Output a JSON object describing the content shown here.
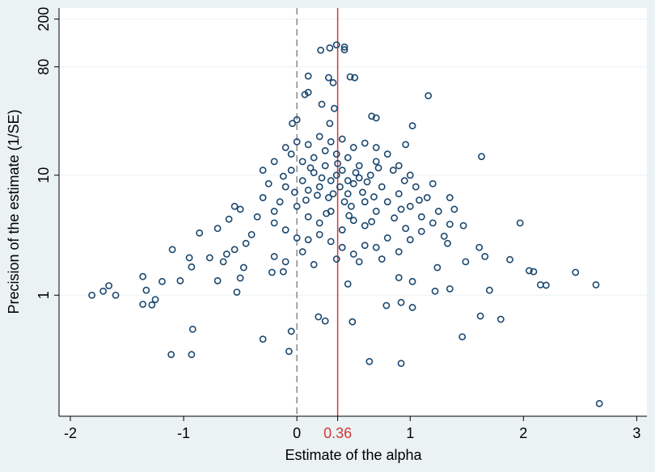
{
  "chart_data": {
    "type": "scatter",
    "x_label": "Estimate of the alpha",
    "y_label": "Precision of the estimate (1/SE)",
    "xlim": [
      -2.1,
      3.09
    ],
    "ylim": [
      0.098,
      247
    ],
    "y_scale": "log",
    "xticks": [
      -2,
      -1,
      0,
      1,
      2,
      3
    ],
    "yticks": [
      1,
      10,
      80,
      200
    ],
    "grid": true,
    "reference_lines": [
      {
        "value": 0,
        "color": "#8a8a8a",
        "style": "dashed"
      },
      {
        "value": 0.36,
        "color": "#d0393b",
        "style": "solid",
        "label": "0.36"
      }
    ],
    "series": [
      {
        "color": "#1a476f",
        "x": [
          -1.81,
          -1.71,
          -1.66,
          -1.6,
          -1.36,
          -1.33,
          -1.36,
          -1.28,
          -1.25,
          -1.19,
          -1.11,
          -1.1,
          -1.03,
          -0.93,
          -0.92,
          -0.93,
          -0.86,
          -0.7,
          -0.55,
          -0.53,
          -0.3,
          -0.05,
          -0.07,
          0.19,
          0.25,
          0.49,
          0.64,
          0.92,
          0.79,
          0.92,
          1.02,
          1.22,
          1.35,
          1.46,
          1.62,
          1.7,
          1.8,
          2.09,
          2.15,
          2.2,
          2.46,
          2.64,
          2.67,
          1.97,
          1.63,
          1.02,
          0.35,
          0.29,
          0.21,
          0.42,
          0.42,
          0.1,
          0.28,
          0.47,
          0.51,
          0.32,
          0.07,
          0.1,
          0.22,
          0.33,
          0.66,
          0.7,
          0.0,
          -0.04,
          0.29,
          1.16,
          0.96,
          1.39,
          1.47,
          1.66,
          1.88,
          2.05,
          1.61,
          1.35,
          1.33,
          1.49,
          1.24,
          1.02,
          0.9,
          0.45,
          -0.95,
          -0.47,
          -0.77,
          -0.62,
          -0.5,
          -0.22,
          -0.12,
          0.2,
          0.3,
          0.35,
          0.4,
          0.45,
          0.5,
          0.55,
          0.6,
          0.25,
          0.15,
          0.1,
          0.05,
          -0.05,
          -0.1,
          -0.15,
          -0.2,
          0.0,
          0.1,
          0.2,
          0.3,
          0.4,
          0.5,
          0.6,
          0.7,
          0.8,
          0.9,
          1.0,
          1.1,
          0.75,
          0.65,
          0.55,
          0.45,
          0.35,
          0.25,
          0.15,
          0.05,
          -0.05,
          0.1,
          0.3,
          0.5,
          0.7,
          0.85,
          0.95,
          1.05,
          1.15,
          1.25,
          0.8,
          0.7,
          0.6,
          0.5,
          0.4,
          0.3,
          0.2,
          0.1,
          0.0,
          -0.1,
          -0.2,
          -0.3,
          -0.25,
          -0.35,
          -0.4,
          -0.45,
          -0.5,
          -0.6,
          -0.7,
          -0.55,
          -0.65,
          -0.2,
          -0.1,
          0.05,
          0.15,
          0.35,
          0.55,
          0.75,
          0.9,
          1.0,
          1.1,
          1.2,
          1.3,
          1.35,
          1.2,
          1.0,
          0.9,
          0.8,
          0.7,
          0.6,
          0.4,
          0.2,
          0.0,
          -0.1,
          -0.2,
          -0.3,
          0.45,
          0.38,
          0.32,
          0.28,
          0.42,
          0.48,
          0.36,
          0.22,
          0.52,
          0.58,
          0.18,
          0.12,
          0.62,
          0.68,
          0.08,
          0.26,
          0.46,
          0.66,
          0.86,
          0.96,
          -0.02,
          -0.12,
          0.72,
          0.92,
          1.08
        ],
        "values": [
          1.0,
          1.08,
          1.2,
          1.0,
          1.43,
          1.1,
          0.84,
          0.83,
          0.92,
          1.3,
          0.32,
          2.4,
          1.32,
          1.72,
          0.52,
          0.32,
          3.3,
          1.32,
          5.5,
          1.06,
          0.43,
          0.5,
          0.34,
          0.66,
          0.61,
          0.6,
          0.28,
          0.27,
          0.82,
          0.87,
          0.79,
          1.08,
          1.13,
          0.45,
          0.67,
          1.1,
          0.63,
          1.57,
          1.22,
          1.21,
          1.55,
          1.22,
          0.125,
          4.0,
          14.3,
          25.8,
          122,
          115,
          110,
          117,
          111,
          67,
          65,
          66,
          65,
          59,
          47,
          49,
          39,
          36,
          31,
          30,
          29,
          27,
          27,
          46,
          18,
          5.2,
          3.8,
          2.1,
          1.98,
          1.6,
          2.5,
          3.9,
          2.7,
          1.9,
          1.7,
          1.3,
          1.4,
          1.24,
          2.05,
          1.7,
          2.05,
          2.2,
          1.39,
          1.55,
          1.57,
          8,
          9,
          10,
          11,
          7,
          8.5,
          9.5,
          6,
          12,
          10.5,
          7.5,
          9,
          11,
          8,
          6,
          5,
          5.5,
          4.5,
          4,
          5,
          3.5,
          4.2,
          3.8,
          5,
          6,
          7,
          5.5,
          4.5,
          8,
          10,
          12,
          14,
          15,
          16,
          14,
          13,
          15,
          18,
          19,
          17,
          13,
          11,
          9,
          8,
          6.5,
          5,
          3,
          2.5,
          2.6,
          2.2,
          2.5,
          2.8,
          3.2,
          2.9,
          3.0,
          3.5,
          4.0,
          6.5,
          8.5,
          4.5,
          3.2,
          2.7,
          5.2,
          4.3,
          3.6,
          2.4,
          1.9,
          2.1,
          1.9,
          2.3,
          1.8,
          2.0,
          1.9,
          2.0,
          2.3,
          2.9,
          3.4,
          4.0,
          3.1,
          6.5,
          8.5,
          10,
          12,
          15,
          17,
          18.5,
          20,
          21,
          19,
          17,
          13,
          11,
          9,
          8,
          7,
          6.5,
          6,
          5.5,
          12.5,
          9.5,
          10.5,
          7.2,
          6.8,
          11.5,
          8.8,
          6.6,
          6.2,
          4.8,
          4.6,
          4.1,
          4.4,
          3.6,
          7.2,
          9.8,
          11.5,
          5.2,
          6.2
        ]
      }
    ]
  }
}
